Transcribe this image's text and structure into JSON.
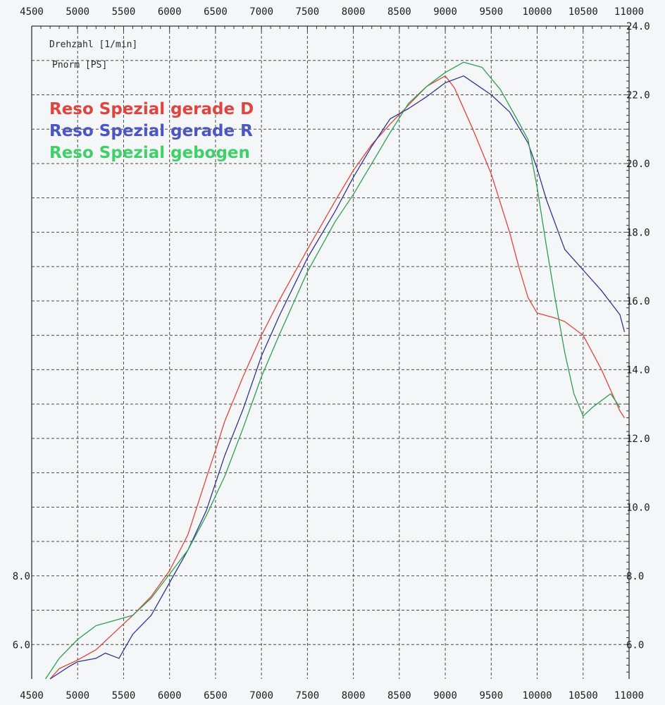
{
  "chart_data": {
    "type": "line",
    "header_lines": [
      "Drehzahl [1/min]",
      "Pnorm [PS]"
    ],
    "x_ticks": [
      "4500",
      "5000",
      "5500",
      "6000",
      "6500",
      "7000",
      "7500",
      "8000",
      "8500",
      "9000",
      "9500",
      "10000",
      "10500",
      "11000"
    ],
    "y_ticks_right": [
      "6.0",
      "8.0",
      "10.0",
      "12.0",
      "14.0",
      "16.0",
      "18.0",
      "20.0",
      "22.0",
      "24.0"
    ],
    "y_ticks_left": [
      "6.0",
      "8.0"
    ],
    "xlim": [
      4500,
      11000
    ],
    "ylim": [
      5.0,
      24.0
    ],
    "grid": true,
    "legend_position": "top-left",
    "series": [
      {
        "name": "Reso Spezial gerade D",
        "color": "#e0443f",
        "points": [
          [
            4700,
            5.0
          ],
          [
            4800,
            5.3
          ],
          [
            5000,
            5.55
          ],
          [
            5200,
            5.85
          ],
          [
            5400,
            6.35
          ],
          [
            5600,
            6.85
          ],
          [
            5800,
            7.4
          ],
          [
            6000,
            8.15
          ],
          [
            6200,
            9.2
          ],
          [
            6400,
            10.85
          ],
          [
            6500,
            11.65
          ],
          [
            6600,
            12.5
          ],
          [
            6800,
            13.8
          ],
          [
            7000,
            15.0
          ],
          [
            7200,
            16.05
          ],
          [
            7500,
            17.5
          ],
          [
            7800,
            18.9
          ],
          [
            8000,
            19.8
          ],
          [
            8200,
            20.55
          ],
          [
            8400,
            21.15
          ],
          [
            8600,
            21.7
          ],
          [
            8800,
            22.25
          ],
          [
            9000,
            22.55
          ],
          [
            9100,
            22.2
          ],
          [
            9300,
            21.0
          ],
          [
            9500,
            19.7
          ],
          [
            9700,
            18.0
          ],
          [
            9800,
            17.0
          ],
          [
            9900,
            16.1
          ],
          [
            10000,
            15.65
          ],
          [
            10200,
            15.5
          ],
          [
            10300,
            15.4
          ],
          [
            10500,
            15.0
          ],
          [
            10700,
            14.0
          ],
          [
            10900,
            12.8
          ],
          [
            10950,
            12.6
          ]
        ]
      },
      {
        "name": "Reso Spezial gerade R",
        "color": "#2f3591",
        "points": [
          [
            4700,
            5.0
          ],
          [
            4900,
            5.35
          ],
          [
            5000,
            5.5
          ],
          [
            5200,
            5.6
          ],
          [
            5300,
            5.75
          ],
          [
            5450,
            5.6
          ],
          [
            5600,
            6.3
          ],
          [
            5800,
            6.85
          ],
          [
            6000,
            7.8
          ],
          [
            6200,
            8.75
          ],
          [
            6400,
            9.9
          ],
          [
            6600,
            11.5
          ],
          [
            6800,
            12.85
          ],
          [
            7000,
            14.4
          ],
          [
            7200,
            15.6
          ],
          [
            7500,
            17.25
          ],
          [
            7800,
            18.6
          ],
          [
            8000,
            19.6
          ],
          [
            8200,
            20.5
          ],
          [
            8400,
            21.3
          ],
          [
            8600,
            21.6
          ],
          [
            8800,
            21.95
          ],
          [
            9000,
            22.35
          ],
          [
            9200,
            22.55
          ],
          [
            9500,
            22.0
          ],
          [
            9700,
            21.5
          ],
          [
            9900,
            20.6
          ],
          [
            10000,
            19.85
          ],
          [
            10100,
            18.95
          ],
          [
            10300,
            17.5
          ],
          [
            10500,
            16.9
          ],
          [
            10700,
            16.3
          ],
          [
            10900,
            15.6
          ],
          [
            10950,
            15.1
          ]
        ]
      },
      {
        "name": "Reso Spezial gebogen",
        "color": "#2f9e52",
        "points": [
          [
            4650,
            5.0
          ],
          [
            4800,
            5.6
          ],
          [
            5000,
            6.15
          ],
          [
            5200,
            6.55
          ],
          [
            5400,
            6.7
          ],
          [
            5600,
            6.85
          ],
          [
            5800,
            7.35
          ],
          [
            6000,
            8.05
          ],
          [
            6200,
            8.75
          ],
          [
            6400,
            9.75
          ],
          [
            6600,
            10.9
          ],
          [
            6800,
            12.3
          ],
          [
            7000,
            13.8
          ],
          [
            7200,
            15.05
          ],
          [
            7500,
            16.85
          ],
          [
            7800,
            18.3
          ],
          [
            8000,
            19.1
          ],
          [
            8200,
            20.0
          ],
          [
            8400,
            20.9
          ],
          [
            8600,
            21.75
          ],
          [
            8800,
            22.25
          ],
          [
            9000,
            22.65
          ],
          [
            9200,
            22.95
          ],
          [
            9400,
            22.8
          ],
          [
            9600,
            22.15
          ],
          [
            9800,
            21.2
          ],
          [
            9900,
            20.7
          ],
          [
            10000,
            19.3
          ],
          [
            10100,
            17.6
          ],
          [
            10200,
            16.0
          ],
          [
            10300,
            14.5
          ],
          [
            10400,
            13.3
          ],
          [
            10500,
            12.65
          ],
          [
            10600,
            12.9
          ],
          [
            10700,
            13.1
          ],
          [
            10800,
            13.3
          ],
          [
            10900,
            12.9
          ]
        ]
      }
    ]
  }
}
